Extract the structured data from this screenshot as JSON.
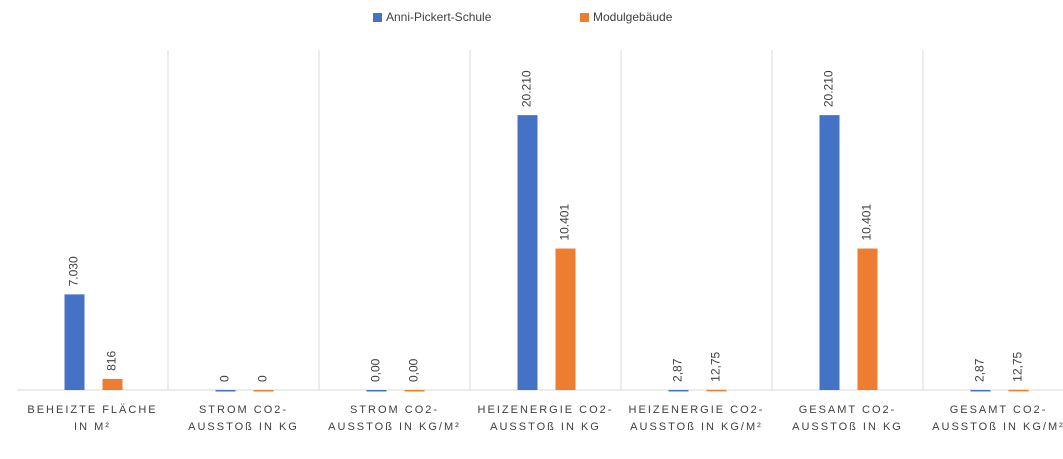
{
  "chart_data": {
    "type": "bar",
    "categories": [
      "BEHEIZTE FLÄCHE IN M²",
      "STROM CO2-AUSSTOß IN KG",
      "STROM CO2-AUSSTOß IN KG/M²",
      "HEIZENERGIE CO2-AUSSTOß IN KG",
      "HEIZENERGIE CO2-AUSSTOß IN KG/M²",
      "GESAMT CO2-AUSSTOß IN KG",
      "GESAMT CO2-AUSSTOß IN KG/M²"
    ],
    "series": [
      {
        "name": "Anni-Pickert-Schule",
        "color": "#4472c4",
        "values": [
          7030,
          0,
          0,
          20210,
          2.87,
          20210,
          2.87
        ],
        "value_labels": [
          "7.030",
          "0",
          "0,00",
          "20.210",
          "2,87",
          "20.210",
          "2,87"
        ]
      },
      {
        "name": "Modulgebäude",
        "color": "#ed7d31",
        "values": [
          816,
          0,
          0,
          10401,
          12.75,
          10401,
          12.75
        ],
        "value_labels": [
          "816",
          "0",
          "0,00",
          "10.401",
          "12,75",
          "10.401",
          "12,75"
        ]
      }
    ],
    "ylim": [
      0,
      25000
    ],
    "legend": "top"
  }
}
